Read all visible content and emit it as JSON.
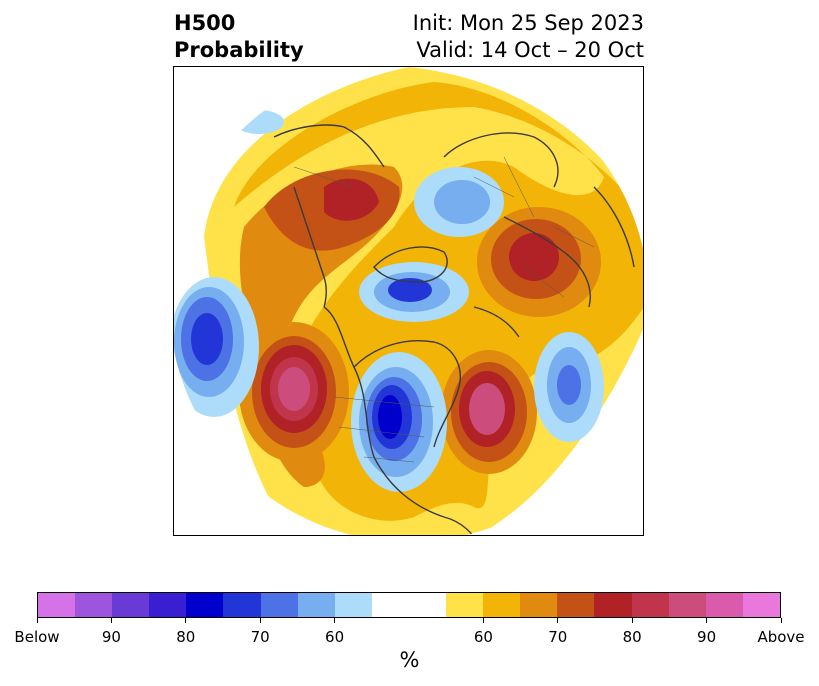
{
  "header": {
    "title_line1": "H500",
    "title_line2": "Probability",
    "init_text": "Init: Mon 25 Sep 2023",
    "valid_text": "Valid: 14 Oct – 20 Oct"
  },
  "colorbar": {
    "colors": [
      "#d672e8",
      "#9d55de",
      "#6a3ad6",
      "#3a1ed2",
      "#0000cc",
      "#2236d8",
      "#4c72e6",
      "#76aef0",
      "#acdcf9",
      "#ffffff",
      "#ffffff",
      "#ffe24a",
      "#f2b407",
      "#e08a10",
      "#c45217",
      "#b02226",
      "#c0344c",
      "#cc4c7c",
      "#da5aac",
      "#ea78dc"
    ],
    "tick_labels": [
      "Below",
      "90",
      "80",
      "70",
      "60",
      "60",
      "70",
      "80",
      "90",
      "Above"
    ],
    "units_label": "%"
  },
  "map": {
    "description_icon": "polar-stereographic-map",
    "anomaly_colors": {
      "below_strong": "#0000cc",
      "below_medium": "#4c72e6",
      "below_light": "#acdcf9",
      "above_light": "#ffe24a",
      "above_medium": "#e08a10",
      "above_strong": "#b02226",
      "above_extreme": "#cc4c7c"
    }
  }
}
